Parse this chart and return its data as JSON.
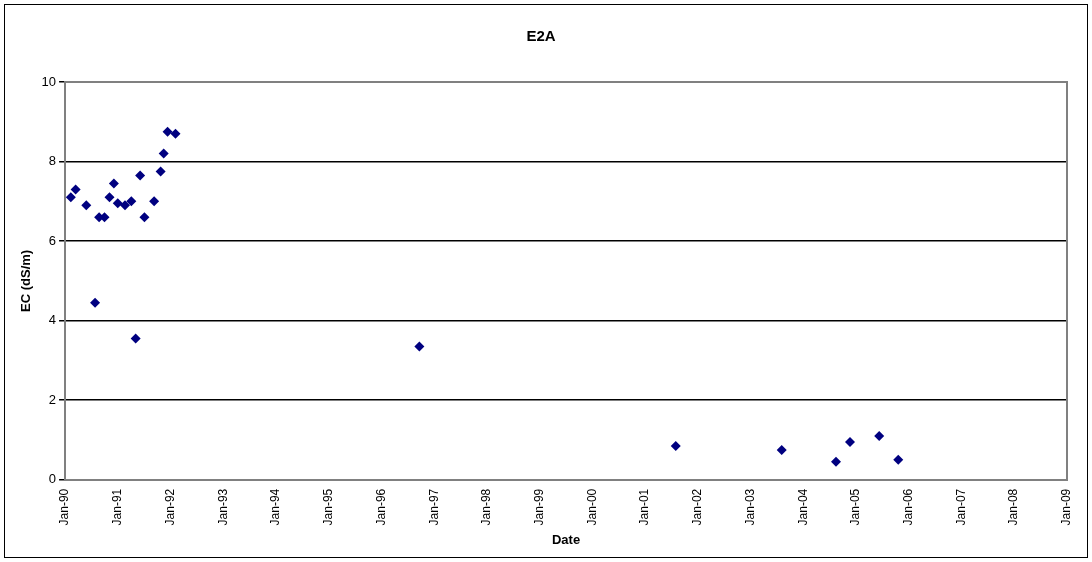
{
  "chart_data": {
    "type": "scatter",
    "title": "E2A",
    "xlabel": "Date",
    "ylabel": "EC (dS/m)",
    "x": [
      "1990-02-10",
      "1990-03-15",
      "1990-05-28",
      "1990-07-28",
      "1990-08-25",
      "1990-10-01",
      "1990-11-05",
      "1990-12-05",
      "1991-01-01",
      "1991-02-20",
      "1991-04-05",
      "1991-05-05",
      "1991-06-05",
      "1991-07-05",
      "1991-09-10",
      "1991-10-25",
      "1991-11-15",
      "1991-12-12",
      "1992-02-05",
      "1996-09-20",
      "2001-08-01",
      "2003-08-05",
      "2004-08-15",
      "2004-11-20",
      "2005-06-10",
      "2005-10-20"
    ],
    "values": [
      7.1,
      7.3,
      6.9,
      4.45,
      6.6,
      6.6,
      7.1,
      7.45,
      6.95,
      6.9,
      7.0,
      3.55,
      7.65,
      6.6,
      7.0,
      7.75,
      8.2,
      8.75,
      8.7,
      3.35,
      0.85,
      0.75,
      0.45,
      0.95,
      1.1,
      0.5
    ],
    "color": "#000080",
    "marker": "diamond",
    "xlim": [
      "1990-01-01",
      "2009-01-01"
    ],
    "xticks": [
      {
        "value": "1990-01-01",
        "label": "Jan-90"
      },
      {
        "value": "1991-01-01",
        "label": "Jan-91"
      },
      {
        "value": "1992-01-01",
        "label": "Jan-92"
      },
      {
        "value": "1993-01-01",
        "label": "Jan-93"
      },
      {
        "value": "1994-01-01",
        "label": "Jan-94"
      },
      {
        "value": "1995-01-01",
        "label": "Jan-95"
      },
      {
        "value": "1996-01-01",
        "label": "Jan-96"
      },
      {
        "value": "1997-01-01",
        "label": "Jan-97"
      },
      {
        "value": "1998-01-01",
        "label": "Jan-98"
      },
      {
        "value": "1999-01-01",
        "label": "Jan-99"
      },
      {
        "value": "2000-01-01",
        "label": "Jan-00"
      },
      {
        "value": "2001-01-01",
        "label": "Jan-01"
      },
      {
        "value": "2002-01-01",
        "label": "Jan-02"
      },
      {
        "value": "2003-01-01",
        "label": "Jan-03"
      },
      {
        "value": "2004-01-01",
        "label": "Jan-04"
      },
      {
        "value": "2005-01-01",
        "label": "Jan-05"
      },
      {
        "value": "2006-01-01",
        "label": "Jan-06"
      },
      {
        "value": "2007-01-01",
        "label": "Jan-07"
      },
      {
        "value": "2008-01-01",
        "label": "Jan-08"
      },
      {
        "value": "2009-01-01",
        "label": "Jan-09"
      }
    ],
    "ylim": [
      0,
      10
    ],
    "yticks": [
      0,
      2,
      4,
      6,
      8,
      10
    ],
    "grid": "y"
  }
}
